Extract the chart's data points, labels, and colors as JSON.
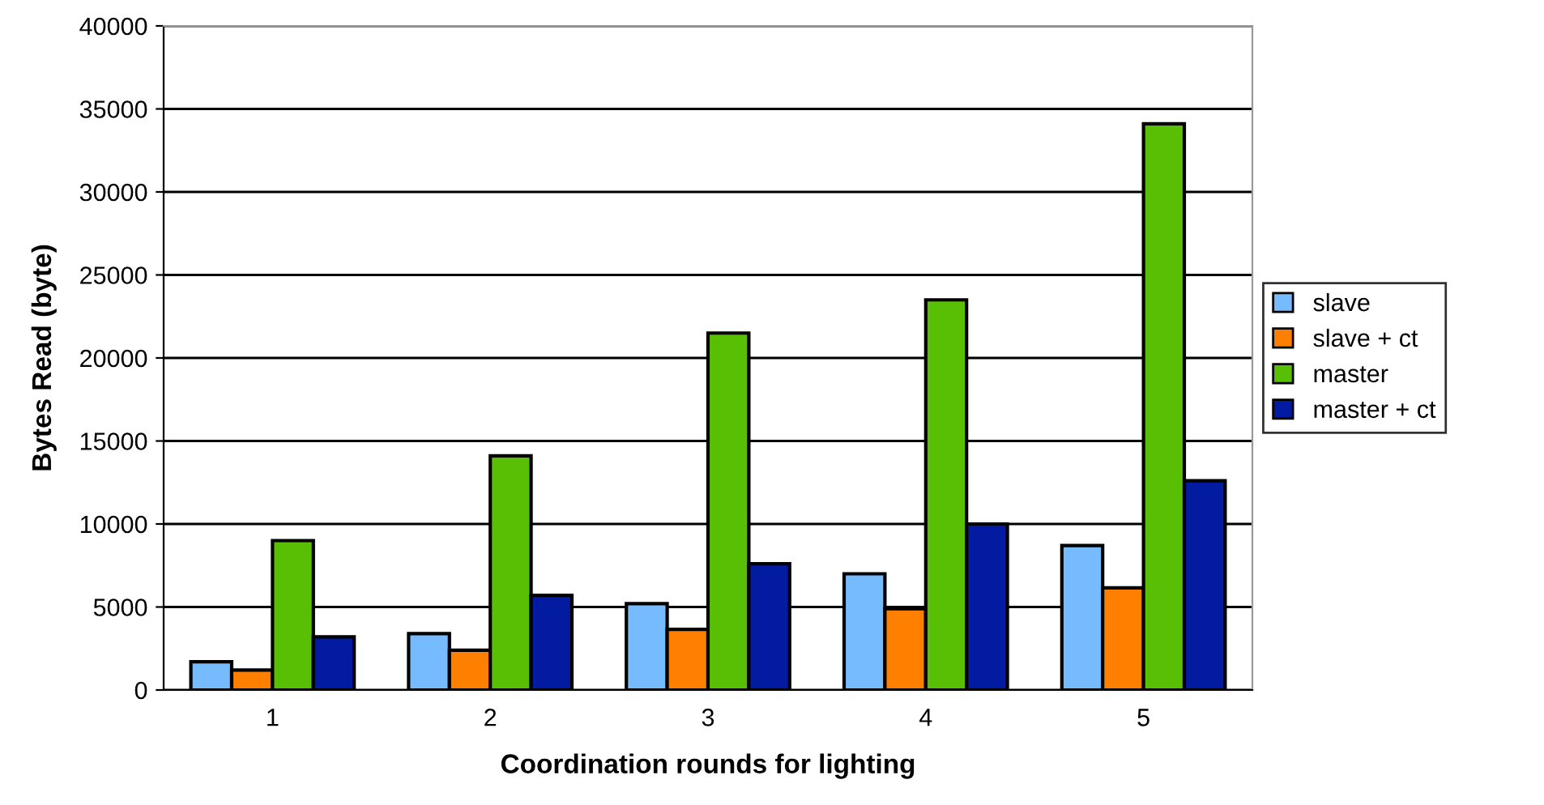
{
  "chart_data": {
    "type": "bar",
    "xlabel": "Coordination rounds for lighting",
    "ylabel": "Bytes Read (byte)",
    "categories": [
      "1",
      "2",
      "3",
      "4",
      "5"
    ],
    "series": [
      {
        "name": "slave",
        "color": "#77bbff",
        "values": [
          1700,
          3400,
          5200,
          7000,
          8700
        ]
      },
      {
        "name": "slave + ct",
        "color": "#ff7f00",
        "values": [
          1200,
          2400,
          3650,
          4900,
          6150
        ]
      },
      {
        "name": "master",
        "color": "#58bf05",
        "values": [
          9000,
          14100,
          21500,
          23500,
          34100
        ]
      },
      {
        "name": "master + ct",
        "color": "#031ba0",
        "values": [
          3200,
          5700,
          7600,
          10000,
          12600
        ]
      }
    ],
    "ylim": [
      0,
      40000
    ],
    "yticks": [
      0,
      5000,
      10000,
      15000,
      20000,
      25000,
      30000,
      35000,
      40000
    ],
    "grid": "y",
    "legend": "right"
  }
}
